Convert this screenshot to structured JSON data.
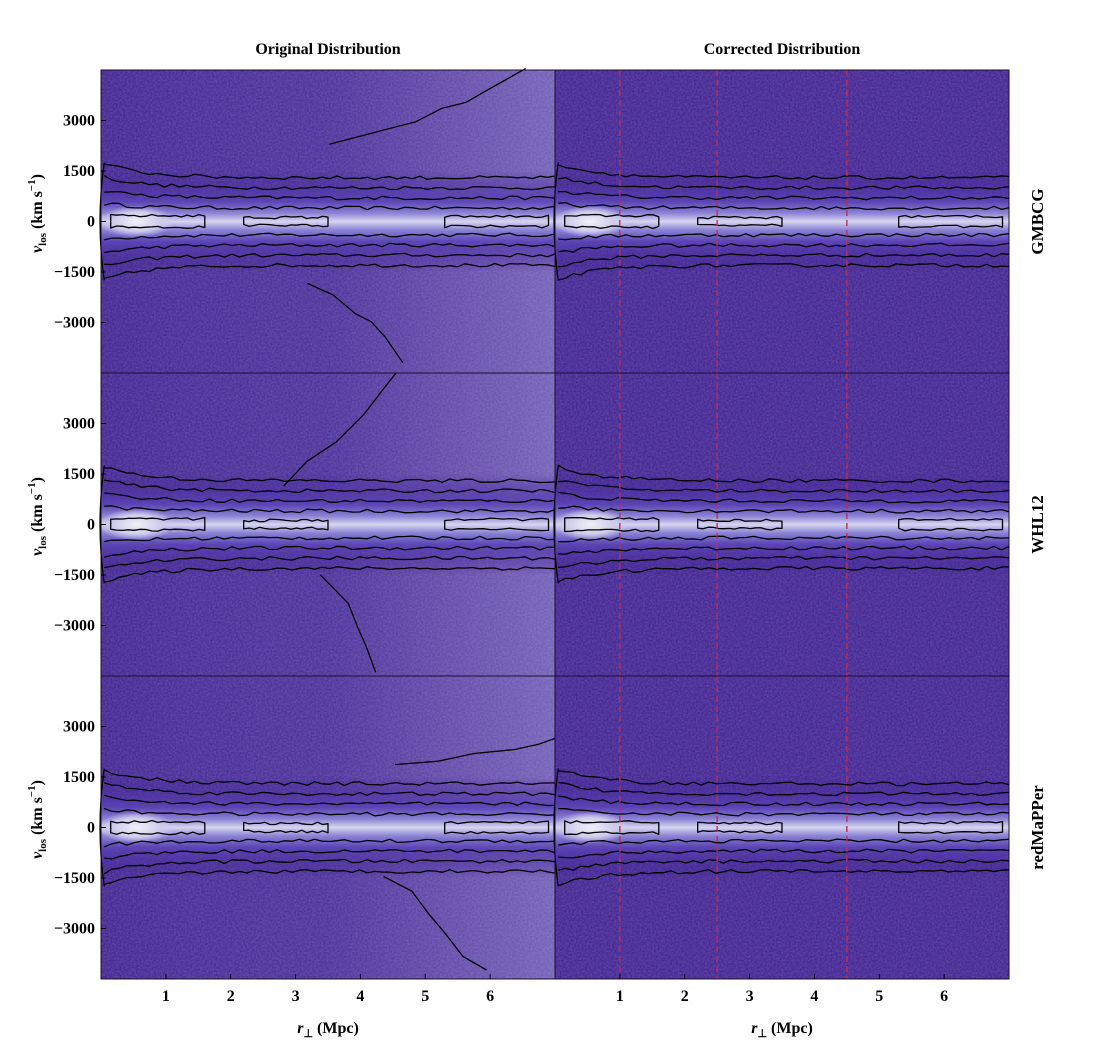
{
  "colors": {
    "background_low": "#3a1a8c",
    "background_high": "#e6e4f4",
    "contour": "#000000",
    "marker_line": "#c42a50"
  },
  "chart_data": {
    "type": "heatmap",
    "subtype": "phase-space density with contours",
    "columns": [
      {
        "title": "Original Distribution",
        "corrected": false
      },
      {
        "title": "Corrected Distribution",
        "corrected": true
      }
    ],
    "rows": [
      {
        "label": "GMBCG"
      },
      {
        "label": "WHL12"
      },
      {
        "label": "redMaPPer"
      }
    ],
    "xlabel_main": "r",
    "xlabel_sub": "⊥",
    "xlabel_unit": "(Mpc)",
    "ylabel_main": "v",
    "ylabel_sub": "los",
    "ylabel_unit_a": "(km s",
    "ylabel_unit_sup": "−1",
    "ylabel_unit_b": ")",
    "xlim": [
      0,
      7
    ],
    "ylim": [
      -4500,
      4500
    ],
    "xticks": [
      1,
      2,
      3,
      4,
      5,
      6
    ],
    "xtick_labels": [
      "1",
      "2",
      "3",
      "4",
      "5",
      "6"
    ],
    "yticks": [
      3000,
      1500,
      0,
      -1500,
      -3000
    ],
    "ytick_labels": [
      "3000",
      "1500",
      "0",
      "−1500",
      "−3000"
    ],
    "corrected_marker_lines_x": [
      1.0,
      2.5,
      4.5
    ],
    "core_band_halfwidth_kms": [
      400,
      700,
      1000,
      1300
    ],
    "original_background_gradient": "density of interlopers increases toward large r and large |v| in the original panels"
  }
}
